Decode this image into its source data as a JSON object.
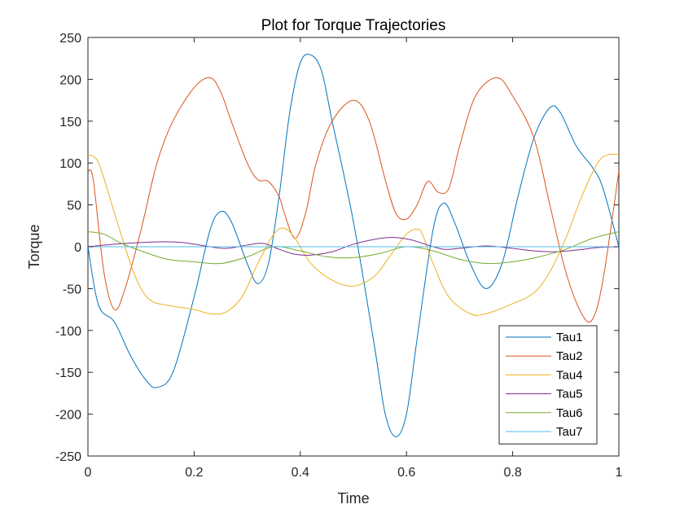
{
  "chart_data": {
    "type": "line",
    "title": "Plot for Torque Trajectories",
    "xlabel": "Time",
    "ylabel": "Torque",
    "xlim": [
      0,
      1
    ],
    "ylim": [
      -250,
      250
    ],
    "x_ticks": [
      "0",
      "0.2",
      "0.4",
      "0.6",
      "0.8",
      "1"
    ],
    "y_ticks": [
      "250",
      "200",
      "150",
      "100",
      "50",
      "0",
      "-50",
      "-100",
      "-150",
      "-200",
      "-250"
    ],
    "grid": false,
    "legend_position": "bottom-right",
    "series": [
      {
        "name": "Tau1",
        "color": "#0072BD",
        "x": [
          0,
          0.02,
          0.05,
          0.08,
          0.11,
          0.13,
          0.16,
          0.2,
          0.23,
          0.25,
          0.27,
          0.3,
          0.32,
          0.34,
          0.36,
          0.38,
          0.4,
          0.42,
          0.44,
          0.46,
          0.5,
          0.54,
          0.56,
          0.58,
          0.6,
          0.62,
          0.65,
          0.67,
          0.69,
          0.72,
          0.75,
          0.78,
          0.81,
          0.84,
          0.87,
          0.89,
          0.92,
          0.95,
          0.97,
          1
        ],
        "y": [
          0,
          -70,
          -90,
          -130,
          -160,
          -168,
          -150,
          -60,
          20,
          42,
          30,
          -20,
          -44,
          -20,
          60,
          160,
          220,
          229,
          210,
          150,
          30,
          -120,
          -200,
          -227,
          -200,
          -110,
          20,
          52,
          30,
          -20,
          -50,
          -20,
          60,
          130,
          166,
          160,
          120,
          95,
          70,
          0
        ]
      },
      {
        "name": "Tau2",
        "color": "#D95319",
        "x": [
          0,
          0.01,
          0.03,
          0.05,
          0.07,
          0.1,
          0.13,
          0.16,
          0.2,
          0.23,
          0.25,
          0.27,
          0.3,
          0.32,
          0.34,
          0.36,
          0.37,
          0.39,
          0.41,
          0.43,
          0.46,
          0.5,
          0.53,
          0.56,
          0.58,
          0.6,
          0.62,
          0.64,
          0.66,
          0.68,
          0.7,
          0.73,
          0.77,
          0.8,
          0.84,
          0.87,
          0.9,
          0.93,
          0.95,
          0.97,
          1
        ],
        "y": [
          90,
          80,
          -30,
          -75,
          -50,
          20,
          100,
          150,
          190,
          202,
          185,
          150,
          100,
          80,
          78,
          60,
          40,
          10,
          40,
          100,
          150,
          175,
          150,
          80,
          40,
          33,
          50,
          78,
          65,
          70,
          120,
          180,
          202,
          180,
          130,
          50,
          -30,
          -80,
          -87,
          -40,
          90
        ]
      },
      {
        "name": "Tau4",
        "color": "#EDB120",
        "x": [
          0,
          0.02,
          0.05,
          0.08,
          0.1,
          0.12,
          0.15,
          0.2,
          0.23,
          0.26,
          0.29,
          0.32,
          0.35,
          0.37,
          0.39,
          0.42,
          0.46,
          0.5,
          0.54,
          0.57,
          0.6,
          0.62,
          0.63,
          0.65,
          0.68,
          0.72,
          0.75,
          0.8,
          0.84,
          0.87,
          0.9,
          0.93,
          0.96,
          0.98,
          1
        ],
        "y": [
          110,
          100,
          40,
          -20,
          -50,
          -65,
          -70,
          -75,
          -80,
          -78,
          -60,
          -20,
          15,
          22,
          10,
          -20,
          -40,
          -47,
          -35,
          -10,
          15,
          21,
          15,
          -20,
          -60,
          -80,
          -80,
          -68,
          -55,
          -30,
          10,
          60,
          100,
          110,
          110
        ]
      },
      {
        "name": "Tau5",
        "color": "#7E2F8E",
        "x": [
          0,
          0.05,
          0.1,
          0.14,
          0.18,
          0.22,
          0.26,
          0.3,
          0.33,
          0.36,
          0.39,
          0.42,
          0.46,
          0.5,
          0.55,
          0.58,
          0.61,
          0.64,
          0.67,
          0.7,
          0.75,
          0.8,
          0.84,
          0.88,
          0.92,
          0.96,
          1
        ],
        "y": [
          0,
          3,
          5,
          6,
          5,
          1,
          -2,
          2,
          4,
          -3,
          -9,
          -10,
          -6,
          3,
          10,
          11,
          8,
          2,
          -3,
          -2,
          1,
          -2,
          -5,
          -6,
          -4,
          -1,
          0
        ]
      },
      {
        "name": "Tau6",
        "color": "#77AC30",
        "x": [
          0,
          0.03,
          0.06,
          0.1,
          0.15,
          0.2,
          0.25,
          0.3,
          0.35,
          0.4,
          0.45,
          0.5,
          0.55,
          0.6,
          0.65,
          0.7,
          0.75,
          0.8,
          0.85,
          0.9,
          0.95,
          1
        ],
        "y": [
          18,
          15,
          5,
          -5,
          -15,
          -18,
          -20,
          -12,
          0,
          -5,
          -12,
          -13,
          -8,
          0,
          -5,
          -15,
          -20,
          -18,
          -12,
          -3,
          10,
          18
        ]
      },
      {
        "name": "Tau7",
        "color": "#4DBEEE",
        "x": [
          0,
          1
        ],
        "y": [
          0,
          0
        ]
      }
    ]
  }
}
